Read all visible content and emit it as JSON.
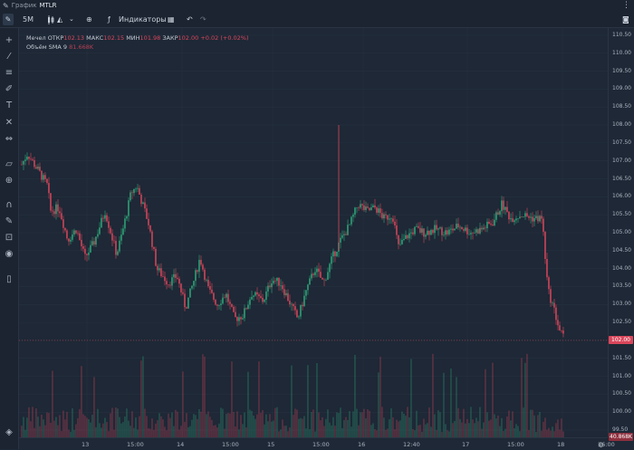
{
  "window": {
    "title_prefix": "График",
    "ticker": "MTLR",
    "edit_icon": "pencil-icon",
    "menu_icon": "kebab-icon"
  },
  "toolbar": {
    "timeframe": "5M",
    "indicators_label": "Индикаторы",
    "icons": [
      "draw-pencil-icon",
      "candle-type-icon",
      "compare-plus-icon",
      "indicators-icon",
      "layouts-icon",
      "undo-icon",
      "redo-icon",
      "camera-icon"
    ]
  },
  "sidebar": {
    "tools": [
      "crosshair-icon",
      "trendline-icon",
      "fib-icon",
      "brush-icon",
      "text-icon",
      "pattern-icon",
      "measure-icon",
      "ruler-icon",
      "zoom-icon",
      "magnet-icon",
      "lock-drawings-icon",
      "lock-icon",
      "eye-icon",
      "trash-icon",
      "layers-icon"
    ]
  },
  "legend": {
    "row1": {
      "name": "Мечел",
      "open_label": "ОТКР",
      "open": "102.13",
      "high_label": "МАКС",
      "high": "102.15",
      "low_label": "МИН",
      "low": "101.98",
      "close_label": "ЗАКР",
      "close": "102.00",
      "change": "+0.02 (+0.02%)"
    },
    "row2": {
      "name": "Объём SMA 9",
      "value": "81.668K"
    }
  },
  "price_axis": {
    "ticks": [
      "110.50",
      "110.00",
      "109.50",
      "109.00",
      "108.50",
      "108.00",
      "107.50",
      "107.00",
      "106.50",
      "106.00",
      "105.50",
      "105.00",
      "104.50",
      "104.00",
      "103.50",
      "103.00",
      "102.50",
      "102.00",
      "101.50",
      "101.00",
      "100.50",
      "100.00",
      "99.50"
    ],
    "last_price": "102.00",
    "volume_tag": "40.868K"
  },
  "time_axis": {
    "labels": [
      "13",
      "15:00",
      "14",
      "15:00",
      "15",
      "15:00",
      "16",
      "12:40",
      "17",
      "15:00",
      "18",
      "16:00"
    ],
    "settings_icon": "gear-icon"
  },
  "colors": {
    "bg": "#1e2836",
    "up": "#2ea77a",
    "down": "#d9465b",
    "price_tag": "#d9465b"
  },
  "chart_data": {
    "type": "candlestick",
    "instrument": "MTLR",
    "timeframe": "5M",
    "y_range": [
      99.3,
      110.7
    ],
    "x_sessions": [
      "13",
      "14",
      "15",
      "16",
      "17",
      "18"
    ],
    "price_path": [
      {
        "x": 0.0,
        "p": 106.9
      },
      {
        "x": 0.01,
        "p": 107.2
      },
      {
        "x": 0.03,
        "p": 106.7
      },
      {
        "x": 0.045,
        "p": 106.3
      },
      {
        "x": 0.05,
        "p": 105.6
      },
      {
        "x": 0.065,
        "p": 105.7
      },
      {
        "x": 0.08,
        "p": 104.8
      },
      {
        "x": 0.095,
        "p": 105.1
      },
      {
        "x": 0.11,
        "p": 104.3
      },
      {
        "x": 0.125,
        "p": 104.7
      },
      {
        "x": 0.145,
        "p": 105.6
      },
      {
        "x": 0.165,
        "p": 104.4
      },
      {
        "x": 0.175,
        "p": 105.0
      },
      {
        "x": 0.19,
        "p": 106.1
      },
      {
        "x": 0.2,
        "p": 106.3
      },
      {
        "x": 0.22,
        "p": 105.3
      },
      {
        "x": 0.235,
        "p": 104.0
      },
      {
        "x": 0.255,
        "p": 103.6
      },
      {
        "x": 0.27,
        "p": 103.8
      },
      {
        "x": 0.285,
        "p": 102.9
      },
      {
        "x": 0.3,
        "p": 103.7
      },
      {
        "x": 0.31,
        "p": 104.3
      },
      {
        "x": 0.325,
        "p": 103.4
      },
      {
        "x": 0.34,
        "p": 103.0
      },
      {
        "x": 0.355,
        "p": 103.3
      },
      {
        "x": 0.37,
        "p": 102.6
      },
      {
        "x": 0.385,
        "p": 102.7
      },
      {
        "x": 0.4,
        "p": 103.3
      },
      {
        "x": 0.42,
        "p": 103.1
      },
      {
        "x": 0.435,
        "p": 103.7
      },
      {
        "x": 0.45,
        "p": 103.6
      },
      {
        "x": 0.465,
        "p": 103.1
      },
      {
        "x": 0.48,
        "p": 102.6
      },
      {
        "x": 0.495,
        "p": 103.4
      },
      {
        "x": 0.51,
        "p": 104.0
      },
      {
        "x": 0.525,
        "p": 103.6
      },
      {
        "x": 0.54,
        "p": 104.3
      },
      {
        "x": 0.555,
        "p": 104.8
      },
      {
        "x": 0.57,
        "p": 105.2
      },
      {
        "x": 0.585,
        "p": 105.8
      },
      {
        "x": 0.6,
        "p": 105.6
      },
      {
        "x": 0.615,
        "p": 105.7
      },
      {
        "x": 0.63,
        "p": 105.4
      },
      {
        "x": 0.645,
        "p": 105.5
      },
      {
        "x": 0.655,
        "p": 104.6
      },
      {
        "x": 0.67,
        "p": 104.9
      },
      {
        "x": 0.685,
        "p": 105.1
      },
      {
        "x": 0.7,
        "p": 105.0
      },
      {
        "x": 0.72,
        "p": 105.1
      },
      {
        "x": 0.74,
        "p": 105.0
      },
      {
        "x": 0.76,
        "p": 105.2
      },
      {
        "x": 0.78,
        "p": 105.0
      },
      {
        "x": 0.8,
        "p": 105.1
      },
      {
        "x": 0.82,
        "p": 105.3
      },
      {
        "x": 0.835,
        "p": 105.8
      },
      {
        "x": 0.85,
        "p": 105.4
      },
      {
        "x": 0.87,
        "p": 105.5
      },
      {
        "x": 0.89,
        "p": 105.4
      },
      {
        "x": 0.905,
        "p": 105.4
      },
      {
        "x": 0.915,
        "p": 103.4
      },
      {
        "x": 0.925,
        "p": 102.9
      },
      {
        "x": 0.935,
        "p": 102.3
      },
      {
        "x": 0.945,
        "p": 102.0
      }
    ],
    "spikes": [
      {
        "x": 0.585,
        "high": 108.0,
        "low": 104.5
      }
    ],
    "last_price": 102.0,
    "volume_sma_9": "81.668K",
    "last_volume": "40.868K"
  }
}
